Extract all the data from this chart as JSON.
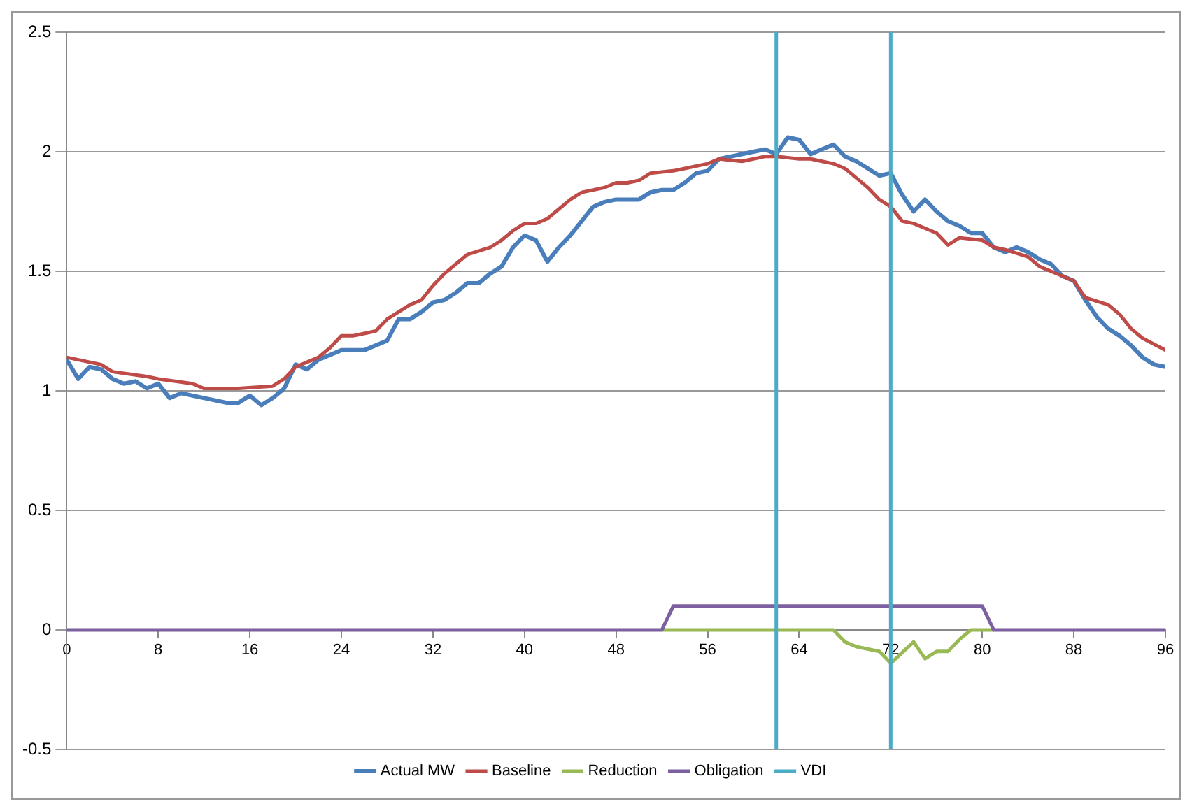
{
  "chart_data": {
    "type": "line",
    "xlim": [
      0,
      96
    ],
    "xticks": [
      0,
      8,
      16,
      24,
      32,
      40,
      48,
      56,
      64,
      72,
      80,
      88,
      96
    ],
    "ylim": [
      -0.5,
      2.5
    ],
    "yticks": [
      -0.5,
      0,
      0.5,
      1,
      1.5,
      2,
      2.5
    ],
    "grid": "y",
    "legend": "bottom",
    "marker": "none",
    "line_style": "solid",
    "series": [
      {
        "name": "Actual MW",
        "color": "#4a7ebb",
        "x": [
          0,
          1,
          2,
          3,
          4,
          5,
          6,
          7,
          8,
          9,
          10,
          11,
          14,
          15,
          16,
          17,
          18,
          19,
          20,
          21,
          22,
          23,
          24,
          26,
          27,
          28,
          29,
          30,
          31,
          32,
          33,
          34,
          35,
          36,
          37,
          38,
          39,
          40,
          41,
          42,
          43,
          44,
          45,
          46,
          47,
          48,
          50,
          51,
          52,
          53,
          54,
          55,
          56,
          57,
          58,
          60,
          61,
          62,
          63,
          64,
          65,
          66,
          67,
          68,
          69,
          70,
          71,
          72,
          73,
          74,
          75,
          76,
          77,
          78,
          79,
          80,
          81,
          82,
          83,
          84,
          85,
          86,
          87,
          88,
          89,
          90,
          91,
          92,
          93,
          94,
          95,
          96
        ],
        "values": [
          1.13,
          1.05,
          1.1,
          1.09,
          1.05,
          1.03,
          1.04,
          1.01,
          1.03,
          0.97,
          0.99,
          0.98,
          0.95,
          0.95,
          0.98,
          0.94,
          0.97,
          1.01,
          1.11,
          1.09,
          1.13,
          1.15,
          1.17,
          1.17,
          1.19,
          1.21,
          1.3,
          1.3,
          1.33,
          1.37,
          1.38,
          1.41,
          1.45,
          1.45,
          1.49,
          1.52,
          1.6,
          1.65,
          1.63,
          1.54,
          1.6,
          1.65,
          1.71,
          1.77,
          1.79,
          1.8,
          1.8,
          1.83,
          1.84,
          1.84,
          1.87,
          1.91,
          1.92,
          1.97,
          1.98,
          2.0,
          2.01,
          1.99,
          2.06,
          2.05,
          1.99,
          2.01,
          2.03,
          1.98,
          1.96,
          1.93,
          1.9,
          1.91,
          1.82,
          1.75,
          1.8,
          1.75,
          1.71,
          1.69,
          1.66,
          1.66,
          1.6,
          1.58,
          1.6,
          1.58,
          1.55,
          1.53,
          1.48,
          1.46,
          1.38,
          1.31,
          1.26,
          1.23,
          1.19,
          1.14,
          1.11,
          1.1
        ]
      },
      {
        "name": "Baseline",
        "color": "#be4b48",
        "x": [
          0,
          3,
          4,
          7,
          8,
          11,
          12,
          14,
          15,
          18,
          19,
          20,
          22,
          23,
          24,
          25,
          27,
          28,
          30,
          31,
          32,
          33,
          34,
          35,
          37,
          38,
          39,
          40,
          41,
          42,
          44,
          45,
          47,
          48,
          49,
          50,
          51,
          53,
          54,
          56,
          57,
          59,
          60,
          61,
          62,
          64,
          65,
          66,
          67,
          68,
          69,
          70,
          71,
          72,
          73,
          74,
          75,
          76,
          77,
          78,
          80,
          81,
          82,
          84,
          85,
          86,
          88,
          89,
          91,
          92,
          93,
          94,
          96
        ],
        "values": [
          1.14,
          1.11,
          1.08,
          1.06,
          1.05,
          1.03,
          1.01,
          1.01,
          1.01,
          1.02,
          1.05,
          1.1,
          1.14,
          1.18,
          1.23,
          1.23,
          1.25,
          1.3,
          1.36,
          1.38,
          1.44,
          1.49,
          1.53,
          1.57,
          1.6,
          1.63,
          1.67,
          1.7,
          1.7,
          1.72,
          1.8,
          1.83,
          1.85,
          1.87,
          1.87,
          1.88,
          1.91,
          1.92,
          1.93,
          1.95,
          1.97,
          1.96,
          1.97,
          1.98,
          1.98,
          1.97,
          1.97,
          1.96,
          1.95,
          1.93,
          1.89,
          1.85,
          1.8,
          1.77,
          1.71,
          1.7,
          1.68,
          1.66,
          1.61,
          1.64,
          1.63,
          1.6,
          1.59,
          1.56,
          1.52,
          1.5,
          1.46,
          1.39,
          1.36,
          1.32,
          1.26,
          1.22,
          1.17
        ]
      },
      {
        "name": "Reduction",
        "color": "#98b954",
        "x": [
          52,
          67,
          68,
          69,
          71,
          72,
          74,
          75,
          76,
          77,
          78,
          79,
          81
        ],
        "values": [
          0,
          0,
          -0.05,
          -0.07,
          -0.09,
          -0.14,
          -0.05,
          -0.12,
          -0.09,
          -0.09,
          -0.04,
          0,
          0
        ]
      },
      {
        "name": "Obligation",
        "color": "#7d60a0",
        "x": [
          0,
          52,
          53,
          80,
          81,
          96
        ],
        "values": [
          0,
          0,
          0.1,
          0.1,
          0,
          0
        ]
      },
      {
        "name": "VDI",
        "color": "#4bacc6",
        "x": [
          62,
          62,
          null,
          72,
          72
        ],
        "values": [
          -0.5,
          2.5,
          null,
          -0.5,
          2.5
        ]
      }
    ]
  }
}
